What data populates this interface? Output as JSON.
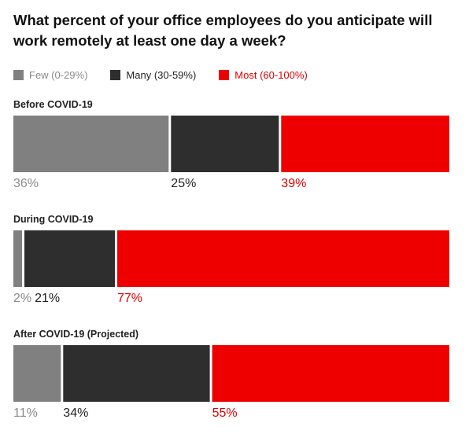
{
  "title": "What percent of your office employees do you anticipate will work remotely at least one day a week?",
  "legend": [
    {
      "label": "Few (0-29%)",
      "color": "#808080",
      "text_color": "#8a8a8a"
    },
    {
      "label": "Many (30-59%)",
      "color": "#2e2e2e",
      "text_color": "#222222"
    },
    {
      "label": "Most (60-100%)",
      "color": "#ee0000",
      "text_color": "#dd0000"
    }
  ],
  "chart_data": {
    "type": "bar",
    "orientation": "horizontal-stacked-100",
    "categories": [
      "Before COVID-19",
      "During COVID-19",
      "After COVID-19 (Projected)"
    ],
    "series": [
      {
        "name": "Few (0-29%)",
        "values": [
          36,
          2,
          11
        ],
        "color": "#808080",
        "label_color": "#8a8a8a"
      },
      {
        "name": "Many (30-59%)",
        "values": [
          25,
          21,
          34
        ],
        "color": "#2e2e2e",
        "label_color": "#222222"
      },
      {
        "name": "Most (60-100%)",
        "values": [
          39,
          77,
          55
        ],
        "color": "#ee0000",
        "label_color": "#dd0000"
      }
    ],
    "value_suffix": "%",
    "xlim": [
      0,
      100
    ],
    "legend_position": "top-left"
  }
}
